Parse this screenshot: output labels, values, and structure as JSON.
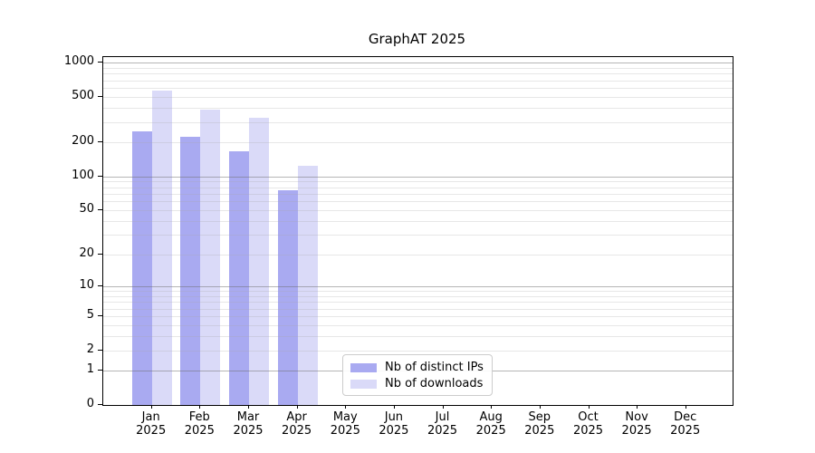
{
  "title": "GraphAT 2025",
  "colors": {
    "background": "#ffffff",
    "axis": "#000000",
    "grid_major": "#b0b0b0",
    "grid_minor": "#e6e6e6",
    "bar_distinct_ips": "#a9aaf1",
    "bar_downloads": "#dadaf8"
  },
  "legend": {
    "items": [
      {
        "label": "Nb of distinct IPs",
        "color": "#a9aaf1"
      },
      {
        "label": "Nb of downloads",
        "color": "#dadaf8"
      }
    ]
  },
  "chart_data": {
    "type": "bar",
    "title": "GraphAT 2025",
    "categories": [
      "Jan 2025",
      "Feb 2025",
      "Mar 2025",
      "Apr 2025",
      "May 2025",
      "Jun 2025",
      "Jul 2025",
      "Aug 2025",
      "Sep 2025",
      "Oct 2025",
      "Nov 2025",
      "Dec 2025"
    ],
    "x_tick_months": [
      "Jan",
      "Feb",
      "Mar",
      "Apr",
      "May",
      "Jun",
      "Jul",
      "Aug",
      "Sep",
      "Oct",
      "Nov",
      "Dec"
    ],
    "x_tick_year": "2025",
    "series": [
      {
        "name": "Nb of distinct IPs",
        "color": "#a9aaf1",
        "values": [
          251,
          222,
          168,
          76,
          null,
          null,
          null,
          null,
          null,
          null,
          null,
          null
        ]
      },
      {
        "name": "Nb of downloads",
        "color": "#dadaf8",
        "values": [
          570,
          390,
          330,
          124,
          null,
          null,
          null,
          null,
          null,
          null,
          null,
          null
        ]
      }
    ],
    "yscale": "log10(value+1)",
    "yticks": [
      0,
      1,
      2,
      5,
      10,
      20,
      50,
      100,
      200,
      500,
      1000
    ],
    "ytick_major": [
      1,
      10,
      100,
      1000
    ],
    "ygrid_minor": [
      2,
      3,
      4,
      5,
      6,
      7,
      8,
      9,
      20,
      30,
      40,
      50,
      60,
      70,
      80,
      90,
      200,
      300,
      400,
      500,
      600,
      700,
      800,
      900
    ],
    "ylim": [
      0,
      1120
    ],
    "grid": true,
    "legend_position": "lower center"
  }
}
